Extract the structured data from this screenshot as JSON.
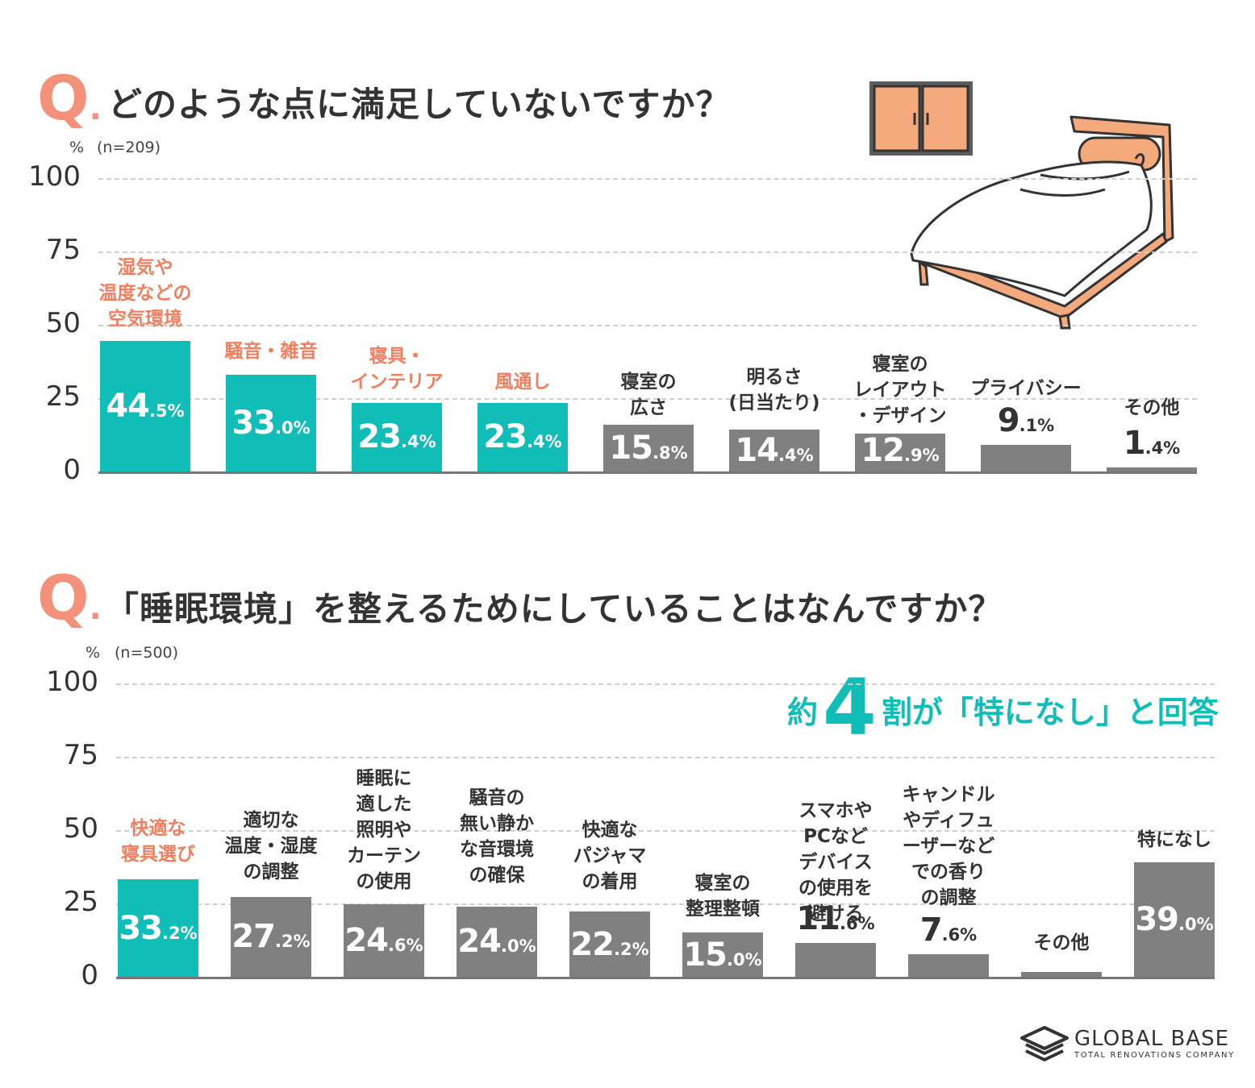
{
  "colors": {
    "highlight": "#10bdb7",
    "neutral": "#808080",
    "accent": "#f07f5f",
    "q_mark": "#f3917a"
  },
  "q_label": "Q",
  "q_dot": ".",
  "percent_unit": "%",
  "chart_data": [
    {
      "type": "bar",
      "title": "どのような点に満足していないですか？",
      "sample": "(n=209)",
      "ylim": [
        0,
        100
      ],
      "yticks": [
        "100",
        "75",
        "50",
        "25",
        "0"
      ],
      "grid": true,
      "categories": [
        "湿気や\n温度などの\n空気環境",
        "騒音・雑音",
        "寝具・\nインテリア",
        "風通し",
        "寝室の\n広さ",
        "明るさ\n(日当たり)",
        "寝室の\nレイアウト\n・デザイン",
        "プライバシー",
        "その他"
      ],
      "values": [
        44.5,
        33.0,
        23.4,
        23.4,
        15.8,
        14.4,
        12.9,
        9.1,
        1.4
      ],
      "value_labels": [
        [
          "44",
          ".5%"
        ],
        [
          "33",
          ".0%"
        ],
        [
          "23",
          ".4%"
        ],
        [
          "23",
          ".4%"
        ],
        [
          "15",
          ".8%"
        ],
        [
          "14",
          ".4%"
        ],
        [
          "12",
          ".9%"
        ],
        [
          "9",
          ".1%"
        ],
        [
          "1",
          ".4%"
        ]
      ],
      "highlighted": [
        true,
        true,
        true,
        true,
        false,
        false,
        false,
        false,
        false
      ]
    },
    {
      "type": "bar",
      "title": "「睡眠環境」を整えるためにしていることはなんですか？",
      "sample": "(n=500)",
      "ylim": [
        0,
        100
      ],
      "yticks": [
        "100",
        "75",
        "50",
        "25",
        "0"
      ],
      "grid": true,
      "annotation": {
        "prefix": "約",
        "number": "4",
        "suffix": "割が「特になし」と回答"
      },
      "categories": [
        "快適な\n寝具選び",
        "適切な\n温度・湿度\nの調整",
        "睡眠に\n適した\n照明や\nカーテン\nの使用",
        "騒音の\n無い静か\nな音環境\nの確保",
        "快適な\nパジャマ\nの着用",
        "寝室の\n整理整頓",
        "スマホや\nPCなど\nデバイス\nの使用を\n避ける",
        "キャンドル\nやディフュ\nーザーなど\nでの香り\nの調整",
        "その他",
        "特になし"
      ],
      "values": [
        33.2,
        27.2,
        24.6,
        24.0,
        22.2,
        15.0,
        11.6,
        7.6,
        1.6,
        39.0
      ],
      "value_labels": [
        [
          "33",
          ".2%"
        ],
        [
          "27",
          ".2%"
        ],
        [
          "24",
          ".6%"
        ],
        [
          "24",
          ".0%"
        ],
        [
          "22",
          ".2%"
        ],
        [
          "15",
          ".0%"
        ],
        [
          "11",
          ".6%"
        ],
        [
          "7",
          ".6%"
        ],
        [
          "",
          ""
        ],
        [
          "39",
          ".0%"
        ]
      ],
      "highlighted": [
        true,
        false,
        false,
        false,
        false,
        false,
        false,
        false,
        false,
        false
      ]
    }
  ],
  "logo": {
    "name": "GLOBAL BASE",
    "tagline": "TOTAL RENOVATIONS COMPANY"
  }
}
